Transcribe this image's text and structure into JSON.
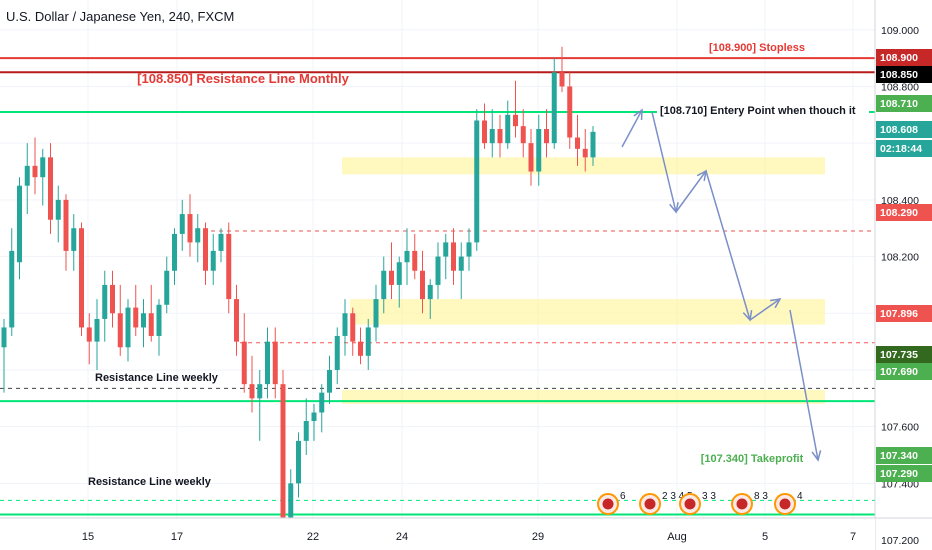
{
  "chart_header": {
    "title": "U.S. Dollar / Japanese Yen, 240, FXCM"
  },
  "chart_data": {
    "type": "candlestick",
    "ylim": [
      107.165,
      109.105
    ],
    "y_ticks": [
      "109.000",
      "108.800",
      "108.600",
      "108.400",
      "108.200",
      "108.000",
      "107.800",
      "107.600",
      "107.400",
      "107.200"
    ],
    "x_tick_labels": [
      "15",
      "17",
      "22",
      "24",
      "29",
      "Aug",
      "5",
      "7"
    ],
    "grid": true,
    "colors": {
      "up": "#26a69a",
      "down": "#ef5350",
      "red_line": "#e53935",
      "green_line": "#00e676",
      "dashed_red": "#ef5350",
      "zone": "#fff59d",
      "arrow": "#7b8fc9",
      "badge_green": "#4caf50",
      "badge_red": "#c62828",
      "badge_dark": "#000000",
      "badge_olive": "#33691e"
    },
    "price_badges": [
      {
        "label": "108.900",
        "color": "#c62828"
      },
      {
        "label": "108.850",
        "color": "#000000"
      },
      {
        "label": "108.710",
        "color": "#4caf50"
      },
      {
        "label": "108.608",
        "color": "#26a69a"
      },
      {
        "label": "02:18:44",
        "color": "#26a69a"
      },
      {
        "label": "108.290",
        "color": "#ef5350"
      },
      {
        "label": "107.896",
        "color": "#ef5350"
      },
      {
        "label": "107.735",
        "color": "#33691e"
      },
      {
        "label": "107.690",
        "color": "#4caf50"
      },
      {
        "label": "107.340",
        "color": "#4caf50"
      },
      {
        "label": "107.290",
        "color": "#4caf50"
      }
    ],
    "annotations": [
      {
        "text": "[108.900] Stopless",
        "color": "#e53935"
      },
      {
        "text": "[108.850] Resistance Line Monthly",
        "color": "#e53935"
      },
      {
        "text": "[108.710] Entery Point when thouch it",
        "color": "#131722"
      },
      {
        "text": "Resistance Line weekly",
        "color": "#131722"
      },
      {
        "text": "Resistance Line weekly",
        "color": "#131722"
      },
      {
        "text": "[107.340] Takeprofit",
        "color": "#4caf50"
      }
    ],
    "event_markers": [
      "6",
      "2 3 4 5",
      "3 3",
      "8 3",
      "4"
    ],
    "candles": [
      [
        107.88,
        107.98,
        107.72,
        107.95
      ],
      [
        107.95,
        108.3,
        107.92,
        108.22
      ],
      [
        108.18,
        108.48,
        108.12,
        108.45
      ],
      [
        108.45,
        108.6,
        108.35,
        108.52
      ],
      [
        108.52,
        108.62,
        108.42,
        108.48
      ],
      [
        108.48,
        108.58,
        108.38,
        108.55
      ],
      [
        108.55,
        108.6,
        108.28,
        108.33
      ],
      [
        108.33,
        108.45,
        108.25,
        108.4
      ],
      [
        108.4,
        108.42,
        108.15,
        108.22
      ],
      [
        108.22,
        108.35,
        108.15,
        108.3
      ],
      [
        108.3,
        108.32,
        107.92,
        107.95
      ],
      [
        107.95,
        108.0,
        107.82,
        107.9
      ],
      [
        107.9,
        108.05,
        107.8,
        107.98
      ],
      [
        107.98,
        108.15,
        107.9,
        108.1
      ],
      [
        108.1,
        108.15,
        107.95,
        108.0
      ],
      [
        108.0,
        108.1,
        107.85,
        107.88
      ],
      [
        107.88,
        108.05,
        107.83,
        108.02
      ],
      [
        108.02,
        108.1,
        107.92,
        107.95
      ],
      [
        107.95,
        108.05,
        107.88,
        108.0
      ],
      [
        108.0,
        108.1,
        107.9,
        107.92
      ],
      [
        107.92,
        108.05,
        107.85,
        108.03
      ],
      [
        108.03,
        108.2,
        108.0,
        108.15
      ],
      [
        108.15,
        108.3,
        108.1,
        108.28
      ],
      [
        108.28,
        108.4,
        108.22,
        108.35
      ],
      [
        108.35,
        108.42,
        108.2,
        108.25
      ],
      [
        108.25,
        108.35,
        108.18,
        108.3
      ],
      [
        108.3,
        108.32,
        108.1,
        108.15
      ],
      [
        108.15,
        108.28,
        108.1,
        108.22
      ],
      [
        108.22,
        108.3,
        108.18,
        108.28
      ],
      [
        108.28,
        108.32,
        108.0,
        108.05
      ],
      [
        108.05,
        108.1,
        107.85,
        107.9
      ],
      [
        107.9,
        108.0,
        107.72,
        107.75
      ],
      [
        107.75,
        107.85,
        107.65,
        107.7
      ],
      [
        107.7,
        107.8,
        107.55,
        107.75
      ],
      [
        107.75,
        107.95,
        107.7,
        107.9
      ],
      [
        107.9,
        107.95,
        107.7,
        107.75
      ],
      [
        107.75,
        107.8,
        107.22,
        107.28
      ],
      [
        107.28,
        107.45,
        107.22,
        107.4
      ],
      [
        107.4,
        107.58,
        107.35,
        107.55
      ],
      [
        107.55,
        107.7,
        107.5,
        107.62
      ],
      [
        107.62,
        107.68,
        107.55,
        107.65
      ],
      [
        107.65,
        107.75,
        107.58,
        107.72
      ],
      [
        107.72,
        107.85,
        107.68,
        107.8
      ],
      [
        107.8,
        107.95,
        107.75,
        107.92
      ],
      [
        107.92,
        108.05,
        107.85,
        108.0
      ],
      [
        108.0,
        108.02,
        107.85,
        107.9
      ],
      [
        107.9,
        107.95,
        107.82,
        107.85
      ],
      [
        107.85,
        107.98,
        107.8,
        107.95
      ],
      [
        107.95,
        108.1,
        107.9,
        108.05
      ],
      [
        108.05,
        108.2,
        108.0,
        108.15
      ],
      [
        108.15,
        108.25,
        108.05,
        108.1
      ],
      [
        108.1,
        108.2,
        108.02,
        108.18
      ],
      [
        108.18,
        108.3,
        108.1,
        108.22
      ],
      [
        108.22,
        108.28,
        108.12,
        108.15
      ],
      [
        108.15,
        108.22,
        108.0,
        108.05
      ],
      [
        108.05,
        108.12,
        107.98,
        108.1
      ],
      [
        108.1,
        108.25,
        108.05,
        108.2
      ],
      [
        108.2,
        108.28,
        108.12,
        108.25
      ],
      [
        108.25,
        108.3,
        108.1,
        108.15
      ],
      [
        108.15,
        108.25,
        108.05,
        108.2
      ],
      [
        108.2,
        108.3,
        108.15,
        108.25
      ],
      [
        108.25,
        108.72,
        108.22,
        108.68
      ],
      [
        108.68,
        108.74,
        108.58,
        108.6
      ],
      [
        108.6,
        108.72,
        108.55,
        108.65
      ],
      [
        108.65,
        108.7,
        108.55,
        108.6
      ],
      [
        108.6,
        108.75,
        108.58,
        108.7
      ],
      [
        108.7,
        108.82,
        108.62,
        108.66
      ],
      [
        108.66,
        108.72,
        108.55,
        108.6
      ],
      [
        108.6,
        108.65,
        108.45,
        108.5
      ],
      [
        108.5,
        108.7,
        108.45,
        108.65
      ],
      [
        108.65,
        108.72,
        108.55,
        108.6
      ],
      [
        108.6,
        108.9,
        108.58,
        108.85
      ],
      [
        108.85,
        108.94,
        108.78,
        108.8
      ],
      [
        108.8,
        108.85,
        108.58,
        108.62
      ],
      [
        108.62,
        108.7,
        108.52,
        108.58
      ],
      [
        108.58,
        108.65,
        108.5,
        108.55
      ],
      [
        108.55,
        108.66,
        108.52,
        108.64
      ]
    ]
  }
}
